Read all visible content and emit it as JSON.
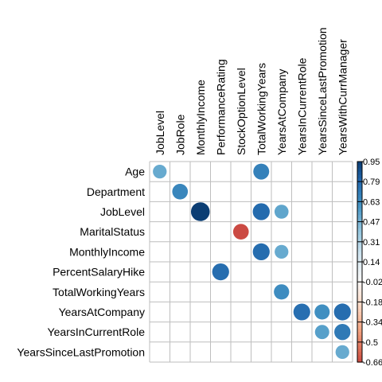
{
  "chart_data": {
    "type": "heatmap",
    "title": "",
    "xlabel": "",
    "ylabel": "",
    "columns": [
      "JobLevel",
      "JobRole",
      "MonthlyIncome",
      "PerformanceRating",
      "StockOptionLevel",
      "TotalWorkingYears",
      "YearsAtCompany",
      "YearsInCurrentRole",
      "YearsSinceLastPromotion",
      "YearsWithCurrManager"
    ],
    "rows": [
      "Age",
      "Department",
      "JobLevel",
      "MaritalStatus",
      "MonthlyIncome",
      "PercentSalaryHike",
      "TotalWorkingYears",
      "YearsAtCompany",
      "YearsInCurrentRole",
      "YearsSinceLastPromotion"
    ],
    "cells": [
      {
        "row": "Age",
        "col": "JobLevel",
        "value": 0.51
      },
      {
        "row": "Age",
        "col": "TotalWorkingYears",
        "value": 0.68
      },
      {
        "row": "Department",
        "col": "JobRole",
        "value": 0.66
      },
      {
        "row": "JobLevel",
        "col": "MonthlyIncome",
        "value": 0.95
      },
      {
        "row": "JobLevel",
        "col": "TotalWorkingYears",
        "value": 0.78
      },
      {
        "row": "JobLevel",
        "col": "YearsAtCompany",
        "value": 0.53
      },
      {
        "row": "MaritalStatus",
        "col": "StockOptionLevel",
        "value": -0.66
      },
      {
        "row": "MonthlyIncome",
        "col": "TotalWorkingYears",
        "value": 0.77
      },
      {
        "row": "MonthlyIncome",
        "col": "YearsAtCompany",
        "value": 0.51
      },
      {
        "row": "PercentSalaryHike",
        "col": "PerformanceRating",
        "value": 0.77
      },
      {
        "row": "TotalWorkingYears",
        "col": "YearsAtCompany",
        "value": 0.63
      },
      {
        "row": "YearsAtCompany",
        "col": "YearsInCurrentRole",
        "value": 0.76
      },
      {
        "row": "YearsAtCompany",
        "col": "YearsSinceLastPromotion",
        "value": 0.62
      },
      {
        "row": "YearsAtCompany",
        "col": "YearsWithCurrManager",
        "value": 0.77
      },
      {
        "row": "YearsInCurrentRole",
        "col": "YearsSinceLastPromotion",
        "value": 0.55
      },
      {
        "row": "YearsInCurrentRole",
        "col": "YearsWithCurrManager",
        "value": 0.71
      },
      {
        "row": "YearsSinceLastPromotion",
        "col": "YearsWithCurrManager",
        "value": 0.51
      }
    ],
    "colorbar": {
      "range": [
        -0.66,
        0.95
      ],
      "ticks": [
        "0.95",
        "0.79",
        "0.63",
        "0.47",
        "0.31",
        "0.14",
        "-0.02",
        "-0.18",
        "-0.34",
        "-0.5",
        "-0.66"
      ]
    },
    "colors": {
      "strong_negative": "#67001f",
      "negative": "#d6604d",
      "light_negative": "#f4a582",
      "neutral": "#f7f7f7",
      "light_positive": "#92c5de",
      "positive": "#4393c3",
      "strong_positive": "#053061",
      "grid": "#bebebe"
    }
  }
}
